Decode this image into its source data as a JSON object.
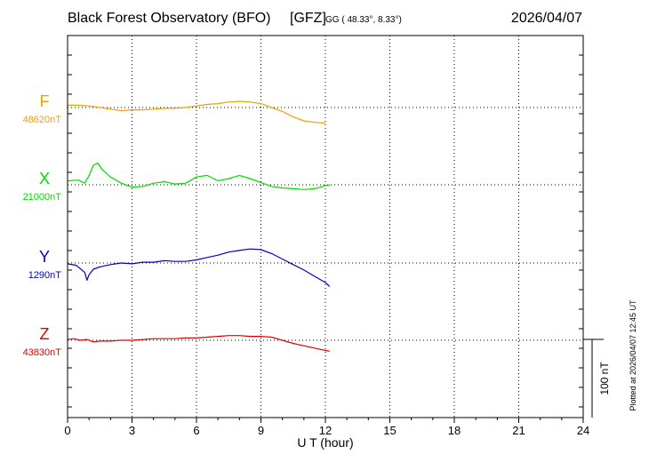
{
  "header": {
    "observatory": "Black Forest Observatory (BFO)",
    "institute": "[GFZ]",
    "coords": "GG ( 48.33°,   8.33°)",
    "date": "2026/04/07"
  },
  "plotted_stamp": "Plotted at 2026/04/07 12:45 UT",
  "scale_label": "100 nT",
  "chart_data": {
    "type": "line",
    "xlabel": "U T (hour)",
    "xlim": [
      0,
      24
    ],
    "xticks": [
      "0",
      "3",
      "6",
      "9",
      "12",
      "15",
      "18",
      "21",
      "24"
    ],
    "grid": true,
    "scale_bar_nT": 100,
    "series": [
      {
        "name": "F",
        "baseline_label": "48620nT",
        "color": "#f0a000",
        "x": [
          0,
          0.5,
          1,
          1.5,
          2,
          2.5,
          3,
          3.5,
          4,
          4.5,
          5,
          5.5,
          6,
          6.5,
          7,
          7.5,
          8,
          8.5,
          9,
          9.5,
          10,
          10.5,
          11,
          11.5,
          12
        ],
        "y": [
          3,
          3,
          2,
          0,
          -2,
          -4,
          -3,
          -3,
          -2,
          -1,
          -1,
          0,
          2,
          4,
          5,
          7,
          8,
          7,
          5,
          0,
          -5,
          -12,
          -17,
          -19,
          -20
        ]
      },
      {
        "name": "X",
        "baseline_label": "21000nT",
        "color": "#00dd00",
        "x": [
          0,
          0.5,
          0.8,
          1,
          1.2,
          1.4,
          1.6,
          2,
          2.5,
          3,
          3.5,
          4,
          4.5,
          5,
          5.5,
          6,
          6.5,
          7,
          7.5,
          8,
          8.5,
          9,
          9.5,
          10,
          10.5,
          11,
          11.5,
          12,
          12.2
        ],
        "y": [
          5,
          6,
          2,
          12,
          25,
          28,
          20,
          10,
          2,
          -3,
          -2,
          2,
          4,
          1,
          2,
          10,
          12,
          5,
          8,
          12,
          8,
          3,
          -2,
          -4,
          -5,
          -6,
          -5,
          -1,
          0
        ]
      },
      {
        "name": "Y",
        "baseline_label": "1290nT",
        "color": "#0000cc",
        "x": [
          0,
          0.4,
          0.8,
          0.9,
          1,
          1.2,
          1.5,
          2,
          2.5,
          3,
          3.5,
          4,
          4.5,
          5,
          5.5,
          6,
          6.5,
          7,
          7.5,
          8,
          8.5,
          9,
          9.5,
          10,
          10.5,
          11,
          11.5,
          12,
          12.2
        ],
        "y": [
          -1,
          -3,
          -12,
          -22,
          -15,
          -8,
          -5,
          -2,
          0,
          -1,
          1,
          1,
          3,
          2,
          2,
          4,
          7,
          10,
          14,
          16,
          18,
          17,
          12,
          5,
          -2,
          -9,
          -17,
          -25,
          -30
        ]
      },
      {
        "name": "Z",
        "baseline_label": "43830nT",
        "color": "#dd0000",
        "x": [
          0,
          0.3,
          0.6,
          0.9,
          1.2,
          1.5,
          2,
          2.5,
          3,
          3.5,
          4,
          4.5,
          5,
          5.5,
          6,
          6.5,
          7,
          7.5,
          8,
          8.5,
          9,
          9.5,
          10,
          10.5,
          11,
          11.5,
          12,
          12.2
        ],
        "y": [
          1,
          2,
          0,
          1,
          -2,
          -1,
          -1,
          0,
          0,
          1,
          2,
          2,
          2,
          3,
          3,
          4,
          5,
          6,
          6,
          5,
          5,
          4,
          0,
          -4,
          -7,
          -10,
          -13,
          -14
        ]
      }
    ]
  }
}
